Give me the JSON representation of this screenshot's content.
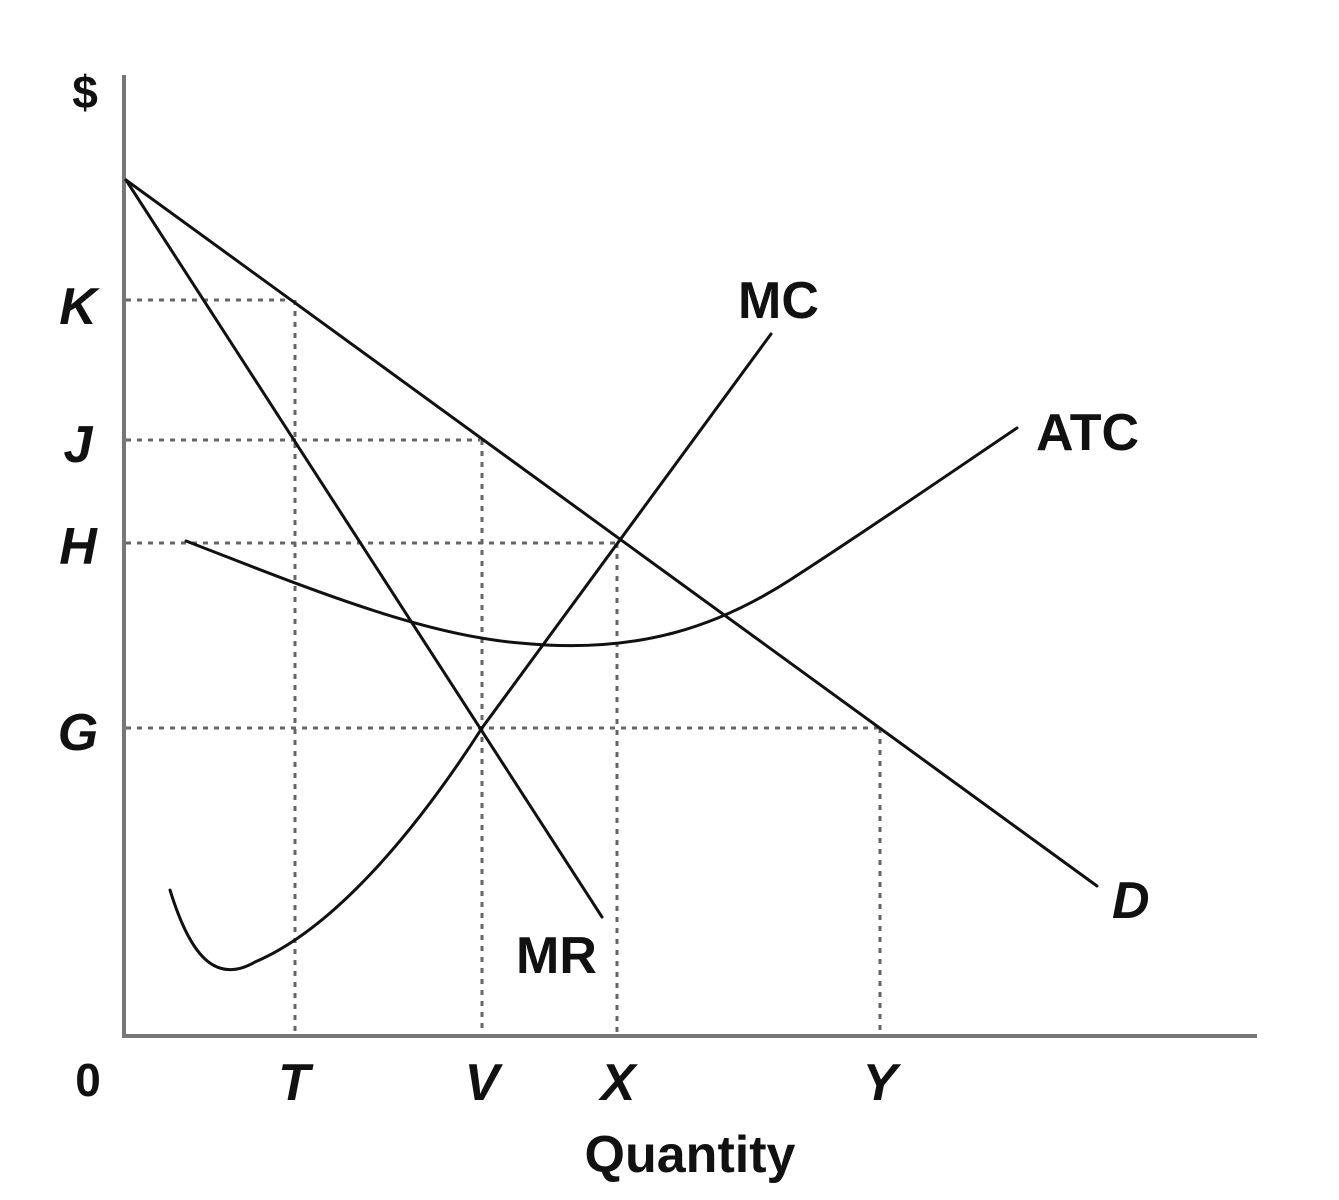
{
  "chart_data": {
    "type": "line",
    "title": "",
    "xlabel": "Quantity",
    "ylabel": "$",
    "origin_label": "0",
    "x_ticks": [
      "T",
      "V",
      "X",
      "Y"
    ],
    "y_ticks": [
      "K",
      "J",
      "H",
      "G"
    ],
    "series": [
      {
        "name": "D",
        "style": "line"
      },
      {
        "name": "MR",
        "style": "line"
      },
      {
        "name": "MC",
        "style": "curve"
      },
      {
        "name": "ATC",
        "style": "curve"
      }
    ],
    "grid": "dotted guide lines at labeled ticks",
    "colors": {
      "ink": "#111111",
      "axis": "#777777",
      "guide": "#666666"
    }
  }
}
